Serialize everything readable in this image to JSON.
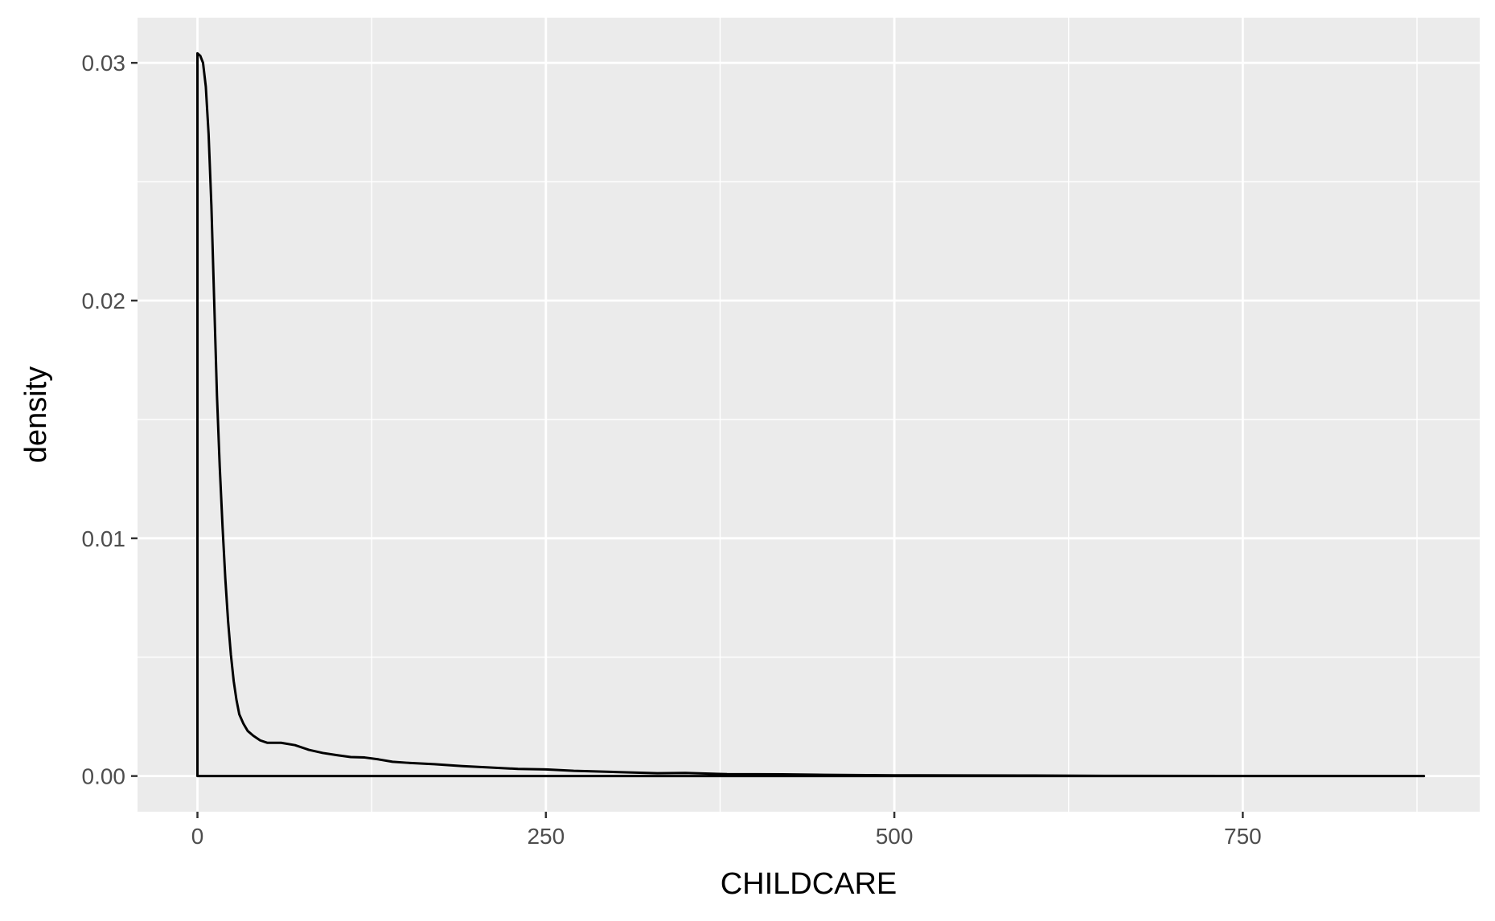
{
  "chart_data": {
    "type": "area",
    "geom": "density",
    "title": "",
    "xlabel": "CHILDCARE",
    "ylabel": "density",
    "xlim": [
      -43,
      920
    ],
    "ylim": [
      -0.0015,
      0.0319
    ],
    "x_ticks": [
      0,
      250,
      500,
      750
    ],
    "x_tick_labels": [
      "0",
      "250",
      "500",
      "750"
    ],
    "y_ticks": [
      0.0,
      0.01,
      0.02,
      0.03
    ],
    "y_tick_labels": [
      "0.00",
      "0.01",
      "0.02",
      "0.03"
    ],
    "x_minor_gridlines": [
      125,
      375,
      625,
      875
    ],
    "y_minor_gridlines": [
      0.005,
      0.015,
      0.025
    ],
    "grid": true,
    "legend": "none",
    "series": [
      {
        "points": [
          [
            0,
            0.0304
          ],
          [
            2,
            0.0303
          ],
          [
            4,
            0.03
          ],
          [
            6,
            0.029
          ],
          [
            8,
            0.027
          ],
          [
            10,
            0.024
          ],
          [
            12,
            0.02
          ],
          [
            14,
            0.016
          ],
          [
            16,
            0.013
          ],
          [
            18,
            0.0105
          ],
          [
            20,
            0.0083
          ],
          [
            22,
            0.0065
          ],
          [
            24,
            0.0051
          ],
          [
            26,
            0.004
          ],
          [
            28,
            0.0032
          ],
          [
            30,
            0.0026
          ],
          [
            33,
            0.0022
          ],
          [
            36,
            0.0019
          ],
          [
            40,
            0.0017
          ],
          [
            45,
            0.0015
          ],
          [
            50,
            0.0014
          ],
          [
            60,
            0.0014
          ],
          [
            70,
            0.0013
          ],
          [
            80,
            0.0011
          ],
          [
            90,
            0.00097
          ],
          [
            100,
            0.00088
          ],
          [
            110,
            0.0008
          ],
          [
            120,
            0.00078
          ],
          [
            130,
            0.0007
          ],
          [
            140,
            0.0006
          ],
          [
            150,
            0.00056
          ],
          [
            170,
            0.0005
          ],
          [
            190,
            0.00042
          ],
          [
            210,
            0.00036
          ],
          [
            230,
            0.0003
          ],
          [
            250,
            0.00028
          ],
          [
            270,
            0.00022
          ],
          [
            300,
            0.00017
          ],
          [
            330,
            0.00012
          ],
          [
            350,
            0.00013
          ],
          [
            380,
            8e-05
          ],
          [
            420,
            7e-05
          ],
          [
            450,
            5e-05
          ],
          [
            500,
            3e-05
          ],
          [
            550,
            2.5e-05
          ],
          [
            600,
            2e-05
          ],
          [
            650,
            1e-05
          ],
          [
            750,
            5e-06
          ],
          [
            800,
            3e-06
          ],
          [
            880,
            0.0
          ]
        ]
      }
    ],
    "colors": {
      "panel_background": "#ebebeb",
      "gridline": "#ffffff",
      "line": "#000000",
      "fill": "none",
      "tick_text": "#4d4d4d",
      "axis_title": "#000000",
      "tick_mark": "#333333"
    }
  }
}
